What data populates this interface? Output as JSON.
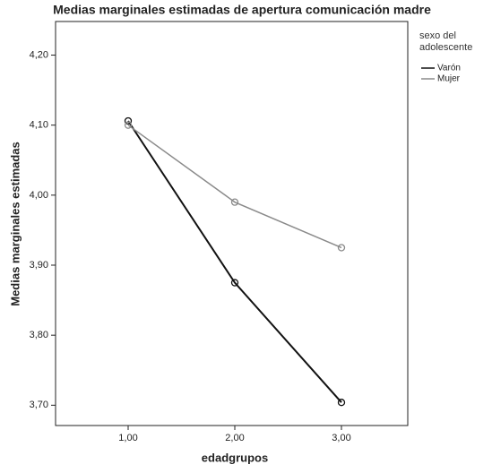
{
  "chart_data": {
    "type": "line",
    "title": "Medias marginales estimadas de apertura comunicación madre",
    "x_label": "edadgrupos",
    "y_label": "Medias marginales estimadas",
    "legend_title": "sexo del adolescente",
    "categories": [
      "1,00",
      "2,00",
      "3,00"
    ],
    "series": [
      {
        "name": "Varón",
        "color": "#111111",
        "values": [
          4.106,
          3.875,
          3.704
        ]
      },
      {
        "name": "Mujer",
        "color": "#8a8a8a",
        "values": [
          4.1,
          3.99,
          3.925
        ]
      }
    ],
    "ylim": [
      3.671,
      4.248
    ],
    "yticks": [
      {
        "value": 3.7,
        "label": "3,70"
      },
      {
        "value": 3.8,
        "label": "3,80"
      },
      {
        "value": 3.9,
        "label": "3,90"
      },
      {
        "value": 4.0,
        "label": "4,00"
      },
      {
        "value": 4.1,
        "label": "4,10"
      },
      {
        "value": 4.2,
        "label": "4,20"
      }
    ],
    "legend_position": "upper right"
  }
}
